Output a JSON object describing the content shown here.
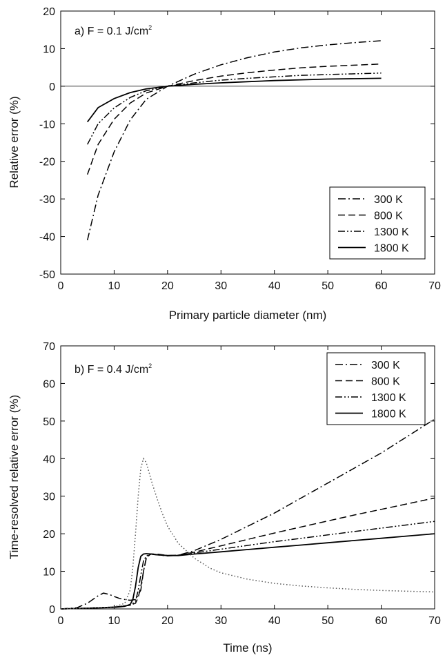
{
  "chart_data": [
    {
      "type": "line",
      "panel": "a",
      "annotation": {
        "main": "a) F = 0.1 J/cm",
        "sup": "2"
      },
      "xlabel": "Primary particle diameter (nm)",
      "ylabel": "Relative error (%)",
      "xlim": [
        0,
        70
      ],
      "ylim": [
        -50,
        20
      ],
      "xticks": [
        0,
        10,
        20,
        30,
        40,
        50,
        60,
        70
      ],
      "yticks": [
        -50,
        -40,
        -30,
        -20,
        -10,
        0,
        10,
        20
      ],
      "legend_position": "bottom-right",
      "zero_line": true,
      "series": [
        {
          "name": "300 K",
          "dash": "dashdot",
          "x": [
            5,
            7,
            10,
            13,
            16,
            20,
            25,
            30,
            35,
            40,
            45,
            50,
            55,
            60
          ],
          "y": [
            -41,
            -29,
            -17.5,
            -9,
            -3.5,
            0,
            3.2,
            5.7,
            7.6,
            9.1,
            10.2,
            11,
            11.6,
            12.1
          ]
        },
        {
          "name": "800 K",
          "dash": "dashed",
          "x": [
            5,
            7,
            10,
            13,
            16,
            20,
            25,
            30,
            35,
            40,
            45,
            50,
            55,
            60
          ],
          "y": [
            -23.5,
            -15.5,
            -8.8,
            -4.5,
            -1.8,
            0,
            1.5,
            2.7,
            3.6,
            4.3,
            4.9,
            5.3,
            5.6,
            5.9
          ]
        },
        {
          "name": "1300 K",
          "dash": "dashdotdot",
          "x": [
            5,
            7,
            10,
            13,
            16,
            20,
            25,
            30,
            35,
            40,
            45,
            50,
            55,
            60
          ],
          "y": [
            -15.5,
            -10,
            -5.8,
            -3,
            -1.2,
            0,
            0.9,
            1.6,
            2.1,
            2.5,
            2.9,
            3.1,
            3.3,
            3.5
          ]
        },
        {
          "name": "1800 K",
          "dash": "solid",
          "x": [
            5,
            7,
            10,
            13,
            16,
            20,
            25,
            30,
            35,
            40,
            45,
            50,
            55,
            60
          ],
          "y": [
            -9.5,
            -5.7,
            -3.3,
            -1.7,
            -0.7,
            0,
            0.5,
            0.9,
            1.2,
            1.5,
            1.7,
            1.9,
            2,
            2.1
          ]
        }
      ]
    },
    {
      "type": "line",
      "panel": "b",
      "annotation": {
        "main": "b) F = 0.4 J/cm",
        "sup": "2"
      },
      "xlabel": "Time (ns)",
      "ylabel": "Time-resolved relative error (%)",
      "xlim": [
        0,
        70
      ],
      "ylim": [
        0,
        70
      ],
      "xticks": [
        0,
        10,
        20,
        30,
        40,
        50,
        60,
        70
      ],
      "yticks": [
        0,
        10,
        20,
        30,
        40,
        50,
        60,
        70
      ],
      "legend_position": "top-right",
      "series": [
        {
          "name": "300 K",
          "dash": "dashdot",
          "x": [
            0,
            3,
            5,
            7,
            8,
            9,
            10,
            11,
            12,
            13,
            14,
            15,
            15.5,
            16,
            16.5,
            17,
            18,
            20,
            22,
            25,
            30,
            35,
            40,
            45,
            50,
            55,
            60,
            65,
            70
          ],
          "y": [
            0,
            0.3,
            1.5,
            3.5,
            4.2,
            3.9,
            3.3,
            2.8,
            2.5,
            2.3,
            2.5,
            5,
            10,
            13.5,
            14.2,
            14.5,
            14.4,
            14.1,
            14.3,
            15.5,
            18.5,
            22,
            25.5,
            29.5,
            33.5,
            37.5,
            41.5,
            46,
            50.5
          ]
        },
        {
          "name": "800 K",
          "dash": "dashed",
          "x": [
            0,
            5,
            10,
            12,
            13,
            14,
            14.5,
            15,
            15.5,
            16,
            16.5,
            17,
            18,
            20,
            22,
            25,
            30,
            35,
            40,
            45,
            50,
            55,
            60,
            65,
            70
          ],
          "y": [
            0,
            0.2,
            0.5,
            0.8,
            1,
            1.5,
            3,
            6,
            10,
            13.3,
            14.3,
            14.6,
            14.6,
            14.2,
            14.3,
            15.1,
            16.8,
            18.5,
            20.2,
            21.8,
            23.4,
            25,
            26.5,
            28,
            29.5
          ]
        },
        {
          "name": "1300 K",
          "dash": "dashdotdot",
          "x": [
            0,
            5,
            10,
            12,
            13,
            14,
            14.5,
            15,
            15.5,
            16,
            16.5,
            17,
            18,
            20,
            22,
            25,
            30,
            35,
            40,
            45,
            50,
            55,
            60,
            65,
            70
          ],
          "y": [
            0,
            0.2,
            0.5,
            0.8,
            1,
            2,
            5,
            9,
            12.8,
            14,
            14.5,
            14.6,
            14.5,
            14.2,
            14.3,
            14.9,
            15.9,
            16.9,
            17.9,
            18.8,
            19.7,
            20.6,
            21.5,
            22.4,
            23.3
          ]
        },
        {
          "name": "1800 K",
          "dash": "solid",
          "x": [
            0,
            5,
            10,
            12,
            13,
            13.5,
            14,
            14.5,
            15,
            15.5,
            16,
            17,
            18,
            20,
            22,
            25,
            30,
            35,
            40,
            45,
            50,
            55,
            60,
            65,
            70
          ],
          "y": [
            0,
            0.2,
            0.4,
            0.7,
            1.2,
            2.5,
            6,
            11,
            14,
            14.6,
            14.7,
            14.6,
            14.4,
            14.2,
            14.2,
            14.6,
            15.2,
            15.8,
            16.4,
            17,
            17.6,
            18.2,
            18.8,
            19.4,
            20
          ]
        },
        {
          "name": "",
          "dash": "dotted",
          "x": [
            0,
            5,
            10,
            12,
            13,
            13.5,
            14,
            14.5,
            15,
            15.5,
            16,
            16.5,
            17,
            18,
            19,
            20,
            22,
            25,
            28,
            30,
            35,
            40,
            45,
            50,
            55,
            60,
            65,
            70
          ],
          "y": [
            0,
            0.2,
            0.5,
            1.5,
            5,
            11,
            20,
            30,
            37.5,
            40,
            39,
            36.5,
            34,
            29.5,
            25.5,
            22,
            17.5,
            13.5,
            10.8,
            9.6,
            7.9,
            6.8,
            6.1,
            5.6,
            5.2,
            4.9,
            4.7,
            4.5
          ]
        }
      ]
    }
  ]
}
